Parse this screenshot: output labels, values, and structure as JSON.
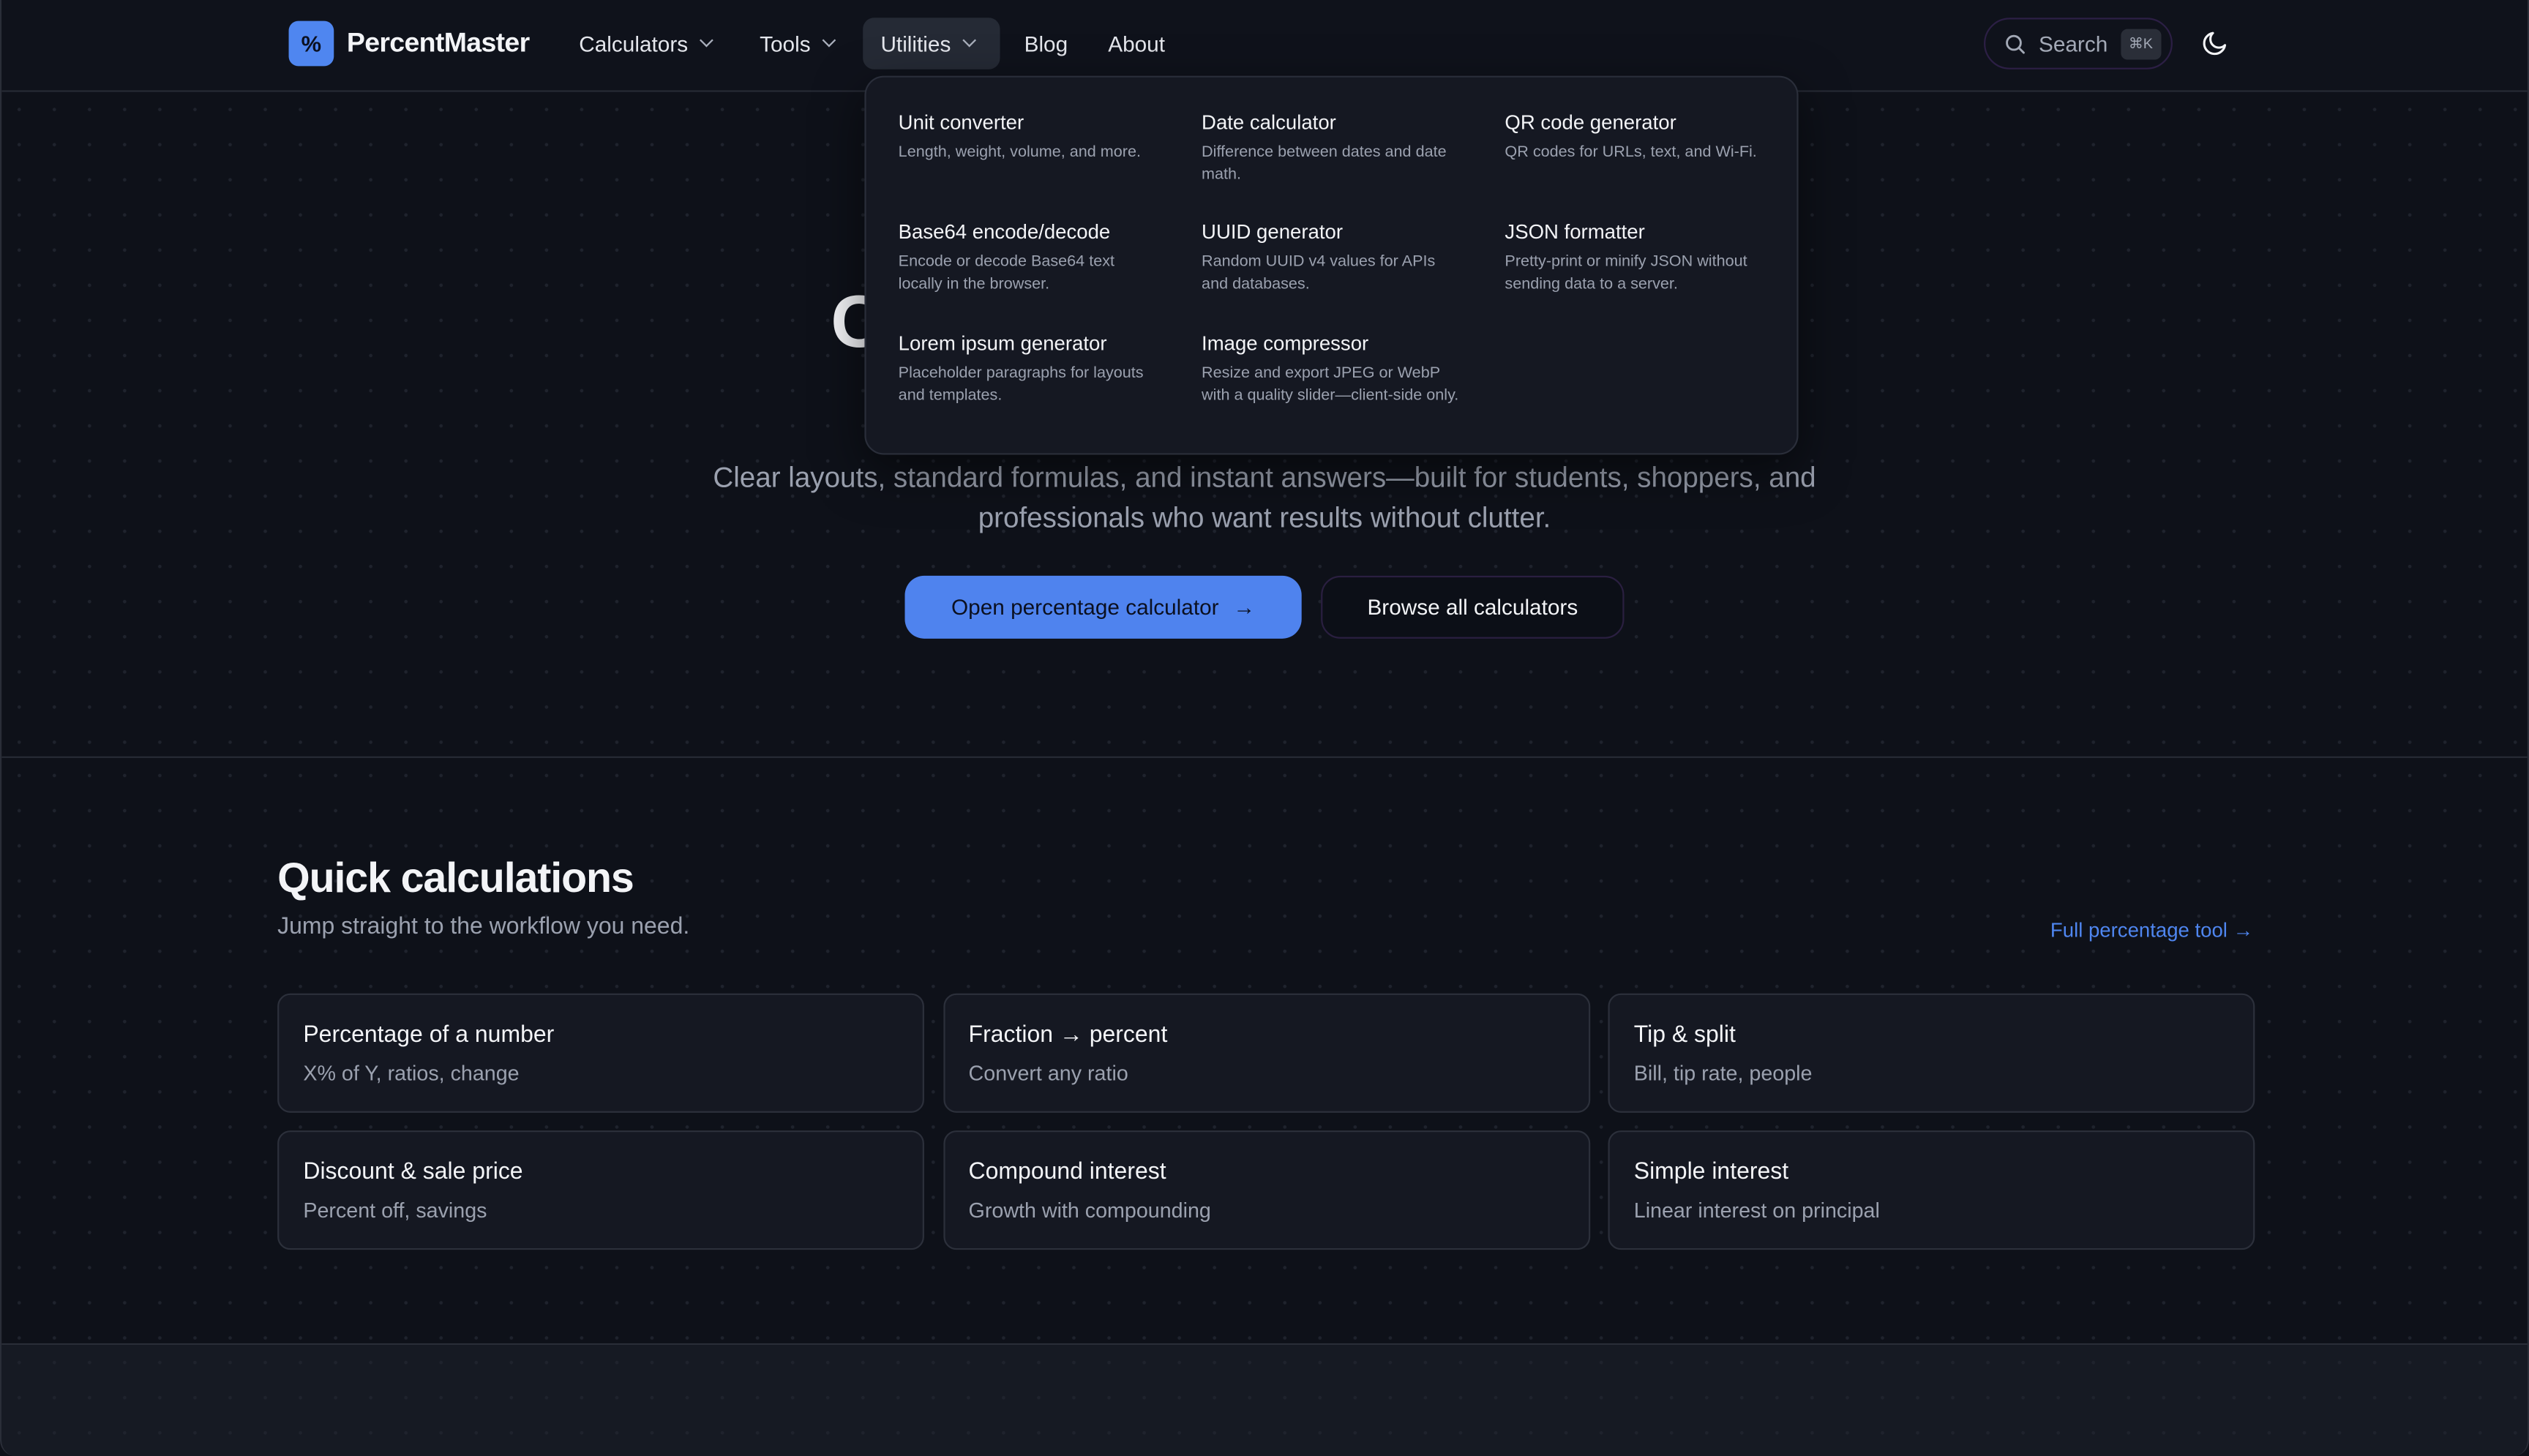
{
  "header": {
    "logo_glyph": "%",
    "brand": "PercentMaster",
    "nav": [
      {
        "label": "Calculators",
        "has_dropdown": true
      },
      {
        "label": "Tools",
        "has_dropdown": true
      },
      {
        "label": "Utilities",
        "has_dropdown": true,
        "active": true
      },
      {
        "label": "Blog"
      },
      {
        "label": "About"
      }
    ],
    "search": {
      "label": "Search",
      "shortcut": "⌘K",
      "icon": "search-icon"
    },
    "theme_icon": "moon-icon"
  },
  "utilities_menu": [
    {
      "title": "Unit converter",
      "desc": "Length, weight, volume, and more."
    },
    {
      "title": "Date calculator",
      "desc": "Difference between dates and date math."
    },
    {
      "title": "QR code generator",
      "desc": "QR codes for URLs, text, and Wi-Fi."
    },
    {
      "title": "Base64 encode/decode",
      "desc": "Encode or decode Base64 text locally in the browser."
    },
    {
      "title": "UUID generator",
      "desc": "Random UUID v4 values for APIs and databases."
    },
    {
      "title": "JSON formatter",
      "desc": "Pretty-print or minify JSON without sending data to a server."
    },
    {
      "title": "Lorem ipsum generator",
      "desc": "Placeholder paragraphs for layouts and templates."
    },
    {
      "title": "Image compressor",
      "desc": "Resize and export JPEG or WebP with a quality slider—client-side only."
    }
  ],
  "hero": {
    "title_visible": "C",
    "subtitle_line1": "Clear layouts, standard formulas, and instant answers—built for students, shoppers, and",
    "subtitle_line2": "professionals who want results without clutter.",
    "primary_button": "Open percentage calculator",
    "primary_arrow": "→",
    "secondary_button": "Browse all calculators"
  },
  "quick": {
    "title": "Quick calculations",
    "subtitle": "Jump straight to the workflow you need.",
    "link": "Full percentage tool →",
    "cards": [
      {
        "title": "Percentage of a number",
        "desc": "X% of Y, ratios, change"
      },
      {
        "title": "Fraction → percent",
        "desc": "Convert any ratio"
      },
      {
        "title": "Tip & split",
        "desc": "Bill, tip rate, people"
      },
      {
        "title": "Discount & sale price",
        "desc": "Percent off, savings"
      },
      {
        "title": "Compound interest",
        "desc": "Growth with compounding"
      },
      {
        "title": "Simple interest",
        "desc": "Linear interest on principal"
      }
    ]
  },
  "colors": {
    "accent": "#4f86f0",
    "background": "#0e1119",
    "surface": "#151822"
  }
}
